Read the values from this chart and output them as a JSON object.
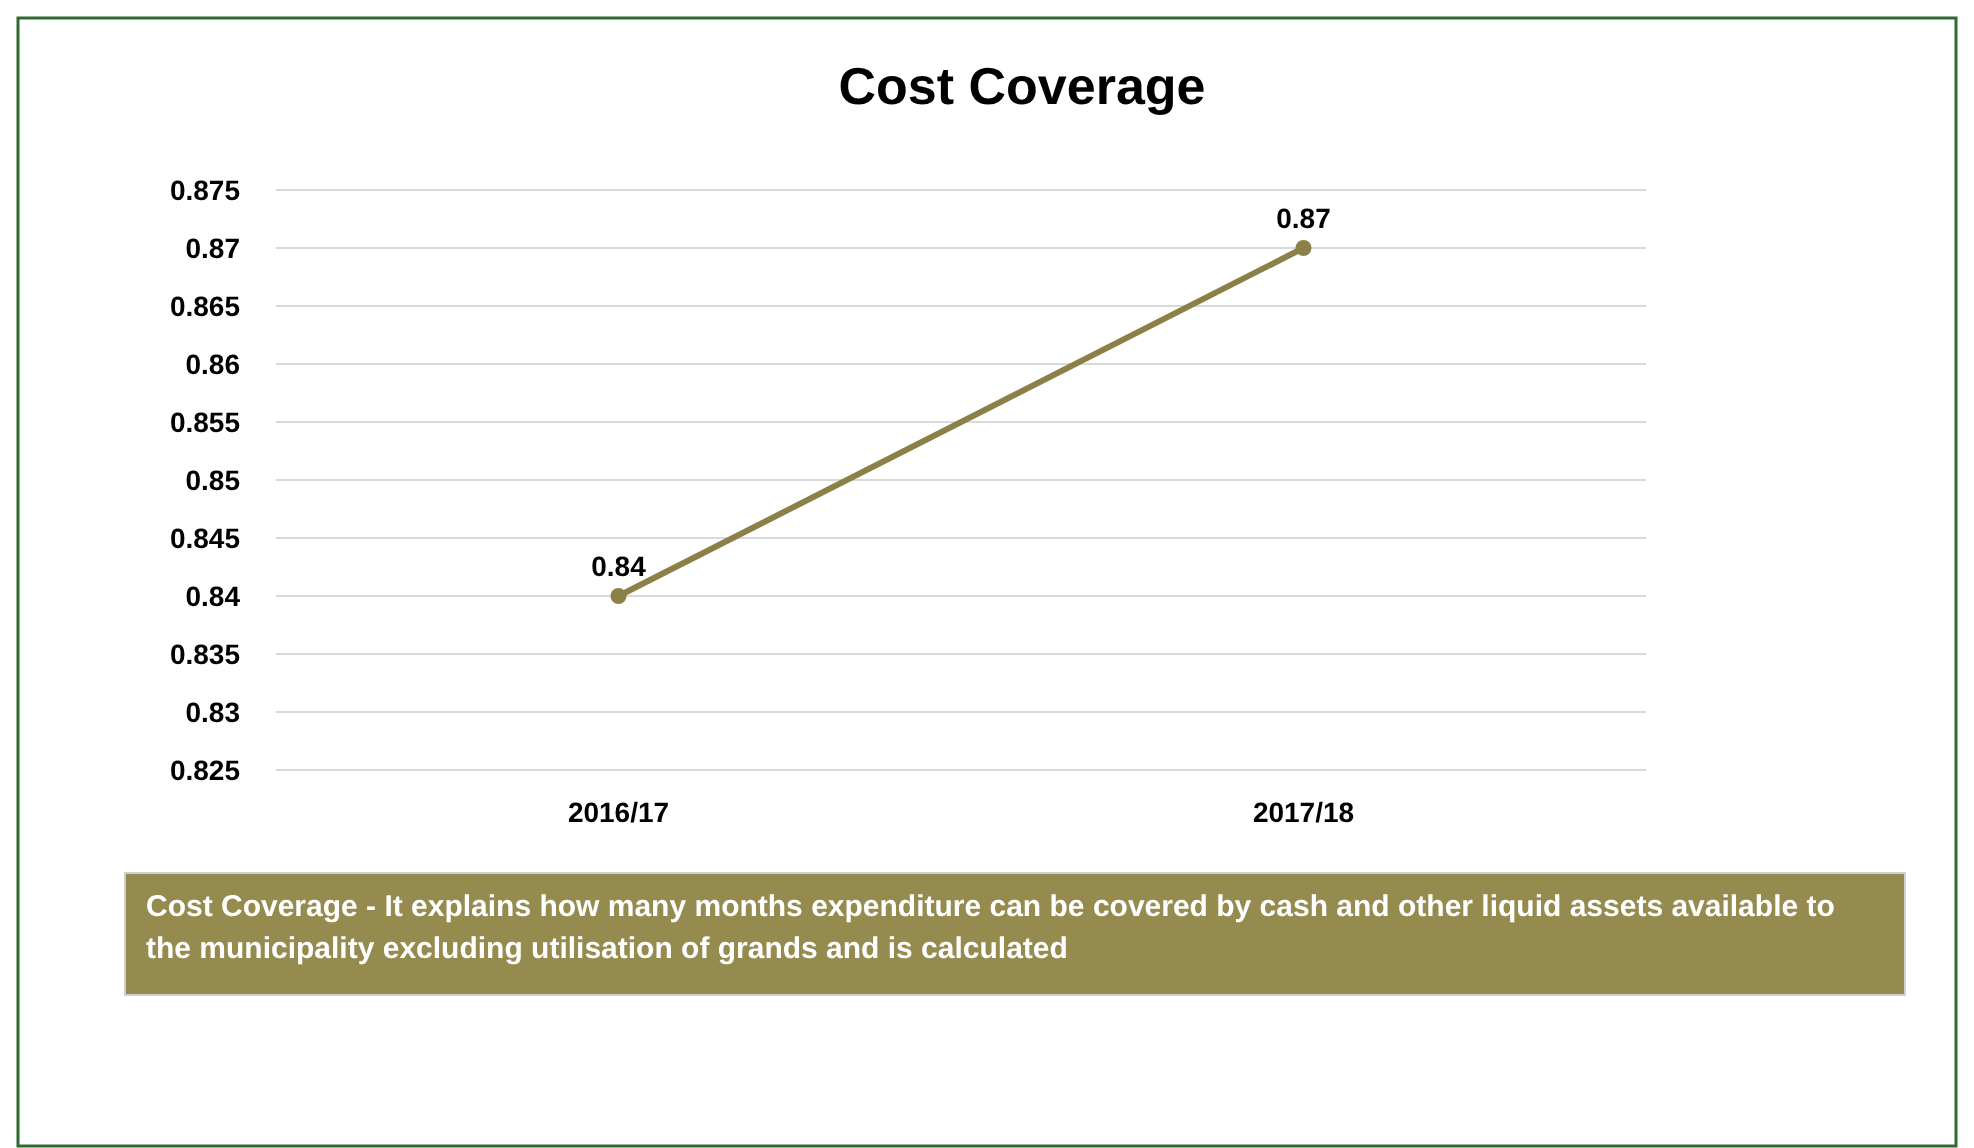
{
  "chart_data": {
    "type": "line",
    "title": "Cost Coverage",
    "categories": [
      "2016/17",
      "2017/18"
    ],
    "series": [
      {
        "color": "#8b8148",
        "values": [
          0.84,
          0.87
        ]
      }
    ],
    "ylim": [
      0.825,
      0.875
    ],
    "yticks": [
      0.825,
      0.83,
      0.835,
      0.84,
      0.845,
      0.85,
      0.855,
      0.86,
      0.865,
      0.87,
      0.875
    ],
    "grid": "y",
    "marker": "circle",
    "line_style": "solid",
    "data_labels": true,
    "annotations": [
      "Cost Coverage - It explains how many months expenditure can be covered by cash and other liquid assets available to the municipality excluding utilisation of grands and is calculated"
    ]
  }
}
